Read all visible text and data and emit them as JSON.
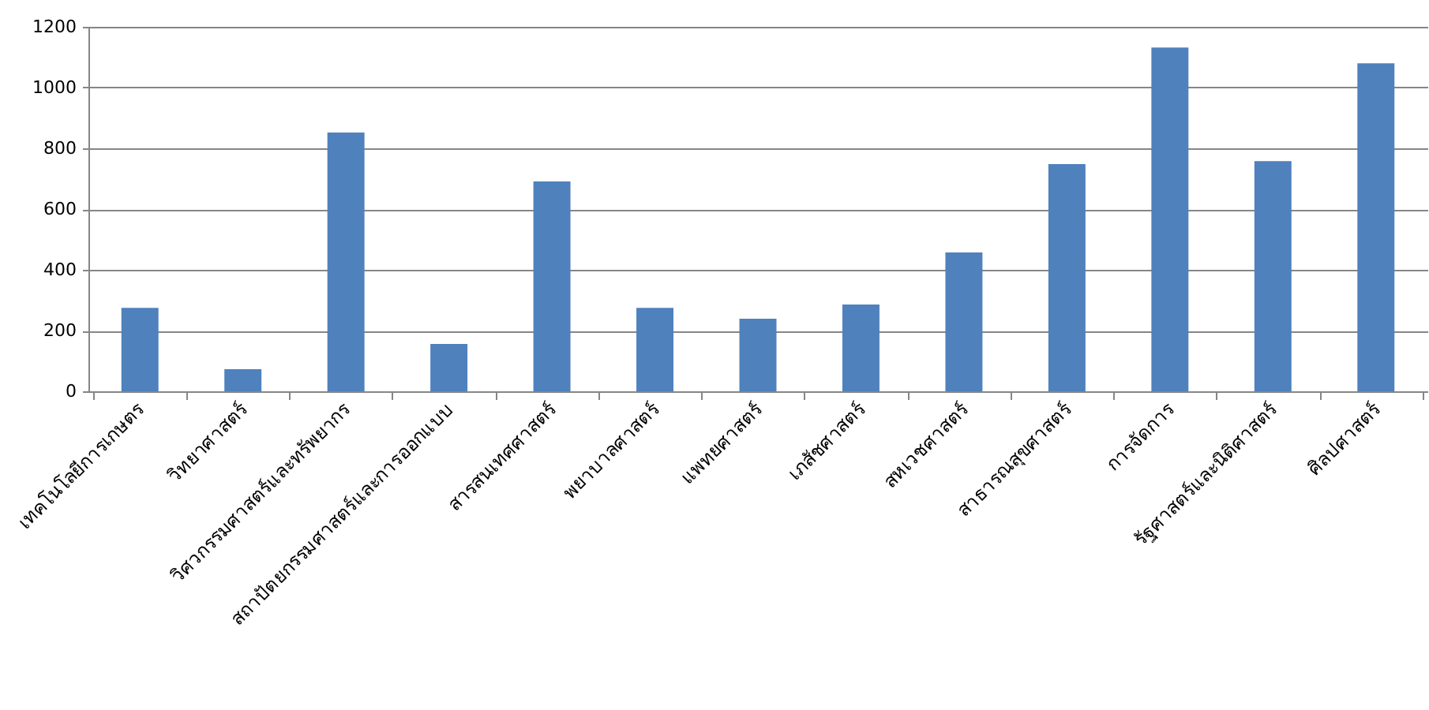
{
  "chart_data": {
    "type": "bar",
    "categories": [
      "เทคโนโลยีการเกษตร",
      "วิทยาศาสตร์",
      "วิศวกรรมศาสตร์และทรัพยากร",
      "สถาปัตยกรรมศาสตร์และการออกแบบ",
      "สารสนเทศศาสตร์",
      "พยาบาลศาสตร์",
      "แพทยศาสตร์",
      "เภสัชศาสตร์",
      "สหเวชศาสตร์",
      "สาธารณสุขศาสตร์",
      "การจัดการ",
      "รัฐศาสตร์และนิติศาสตร์",
      "ศิลปศาสตร์"
    ],
    "values": [
      275,
      73,
      852,
      156,
      691,
      275,
      239,
      286,
      457,
      748,
      1132,
      758,
      1080
    ],
    "color": "#4f81bd",
    "ylim": [
      0,
      1200
    ],
    "yticks": [
      0,
      200,
      400,
      600,
      800,
      1000,
      1200
    ],
    "grid": "y"
  }
}
